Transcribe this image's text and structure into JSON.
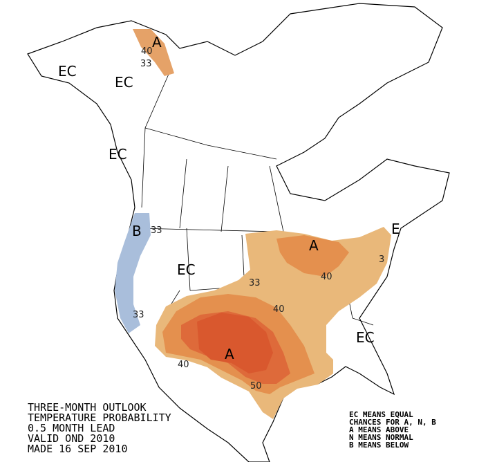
{
  "map_labels": [
    "EC",
    "EC",
    "EC",
    "A",
    "40",
    "33",
    "B",
    "33",
    "EC",
    "E",
    "A",
    "33",
    "40",
    "40",
    "3",
    "33",
    "A",
    "40",
    "50",
    "EC"
  ],
  "title_lines": [
    "THREE-MONTH OUTLOOK",
    "TEMPERATURE PROBABILITY",
    "0.5 MONTH LEAD",
    "VALID OND 2010",
    "MADE 16 SEP 2010"
  ],
  "legend_lines": [
    "EC MEANS EQUAL",
    "CHANCES FOR A, N, B",
    "A MEANS ABOVE",
    "N MEANS NORMAL",
    "B MEANS BELOW"
  ]
}
